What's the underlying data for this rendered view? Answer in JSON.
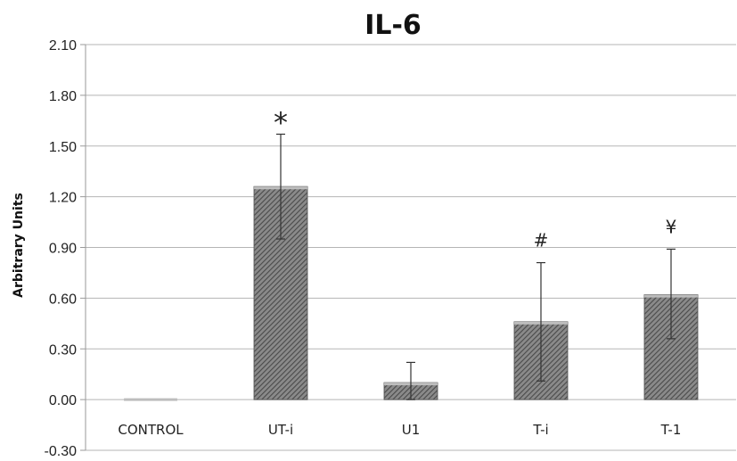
{
  "chart_data": {
    "type": "bar",
    "title": "IL-6",
    "xlabel": "",
    "ylabel": "Arbitrary Units",
    "categories": [
      "CONTROL",
      "UT-i",
      "U1",
      "T-i",
      "T-1"
    ],
    "values": [
      0.0,
      1.26,
      0.1,
      0.46,
      0.62
    ],
    "error_low": [
      0.0,
      0.95,
      0.0,
      0.11,
      0.36
    ],
    "error_high": [
      0.0,
      1.57,
      0.22,
      0.81,
      0.89
    ],
    "annotations": [
      "",
      "*",
      "",
      "#",
      "¥"
    ],
    "ylim": [
      -0.3,
      2.1
    ],
    "yticks": [
      "2.10",
      "1.80",
      "1.50",
      "1.20",
      "0.90",
      "0.60",
      "0.30",
      "0.00",
      "-0.30"
    ],
    "grid": true,
    "legend": "none",
    "bar_color": "#6b6b6b"
  }
}
